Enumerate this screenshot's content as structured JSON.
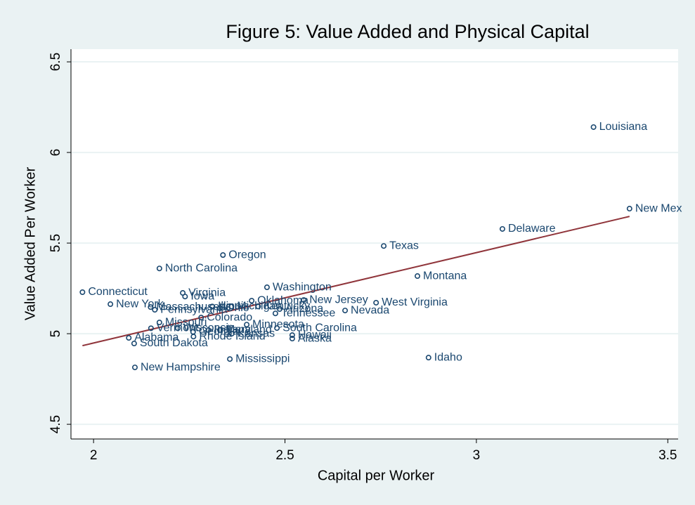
{
  "chart_data": {
    "type": "scatter",
    "title": "Figure 5: Value Added and Physical Capital",
    "x_label": "Capital per Worker",
    "y_label": "Value Added Per Worker",
    "xlim": [
      1.941,
      3.527
    ],
    "ylim": [
      4.419,
      6.57
    ],
    "xticks": [
      2,
      2.5,
      3,
      3.5
    ],
    "yticks": [
      4.5,
      5,
      5.5,
      6,
      6.5
    ],
    "grid": true,
    "color": "#1a476f",
    "labels": [
      "Louisiana",
      "New Mex",
      "Delaware",
      "Texas",
      "Montana",
      "Oregon",
      "North Carolina",
      "Washington",
      "Connecticut",
      "Virginia",
      "Iowa",
      "West Virginia",
      "New York",
      "Nevada",
      "New Jersey",
      "Oklahoma",
      "Tennessee",
      "Arizona",
      "Massachusetts",
      "Pennsylvania",
      "Colorado",
      "Missouri",
      "South Carolina",
      "Kansas",
      "Hawaii",
      "Alaska",
      "Rhode Island",
      "Alabama",
      "South Dakota",
      "Mississippi",
      "Idaho",
      "New Hampshire",
      "Illinois",
      "Ohio",
      "Michigan",
      "Indiana",
      "Kentucky",
      "Wisconsin",
      "Georgia",
      "Maryland",
      "Minnesota",
      "Vermont"
    ],
    "x": [
      3.306,
      3.4,
      3.068,
      2.758,
      2.846,
      2.338,
      2.172,
      2.453,
      1.971,
      2.233,
      2.239,
      2.738,
      2.044,
      2.657,
      2.549,
      2.413,
      2.475,
      2.486,
      2.149,
      2.16,
      2.281,
      2.172,
      2.479,
      2.361,
      2.519,
      2.519,
      2.261,
      2.092,
      2.106,
      2.356,
      2.875,
      2.108,
      2.31,
      2.33,
      2.36,
      2.3,
      2.43,
      2.22,
      2.26,
      2.33,
      2.4,
      2.15
    ],
    "values": [
      6.14,
      5.69,
      5.578,
      5.484,
      5.318,
      5.434,
      5.36,
      5.256,
      5.229,
      5.225,
      5.205,
      5.171,
      5.163,
      5.128,
      5.186,
      5.182,
      5.112,
      5.136,
      5.147,
      5.132,
      5.089,
      5.062,
      5.031,
      5.0,
      4.992,
      4.973,
      4.984,
      4.977,
      4.946,
      4.86,
      4.868,
      4.814,
      5.15,
      5.14,
      5.15,
      5.02,
      5.15,
      5.03,
      5.01,
      5.02,
      5.05,
      5.03
    ],
    "fit": {
      "x": [
        1.971,
        3.4
      ],
      "values": [
        4.934,
        5.647
      ],
      "color": "#90353b"
    }
  }
}
